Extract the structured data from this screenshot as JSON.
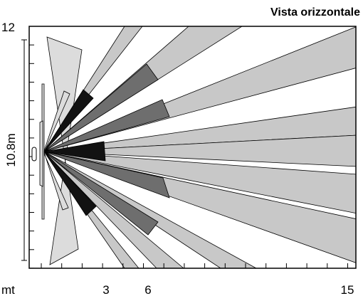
{
  "header": {
    "title": "Vista orizzontale"
  },
  "axes": {
    "y_top_label": "12",
    "y_axis_label": "10.8m",
    "x_unit_label": "mt",
    "x_tick_labels": [
      "3",
      "6",
      "15"
    ]
  },
  "colors": {
    "light_zone": "#c8c8c8",
    "mid_zone": "#6e6e6e",
    "dark_zone": "#121212",
    "side_lobe": "#dcdcdc",
    "frame": "#000000"
  },
  "icons": {
    "sensor": "sensor-icon"
  }
}
